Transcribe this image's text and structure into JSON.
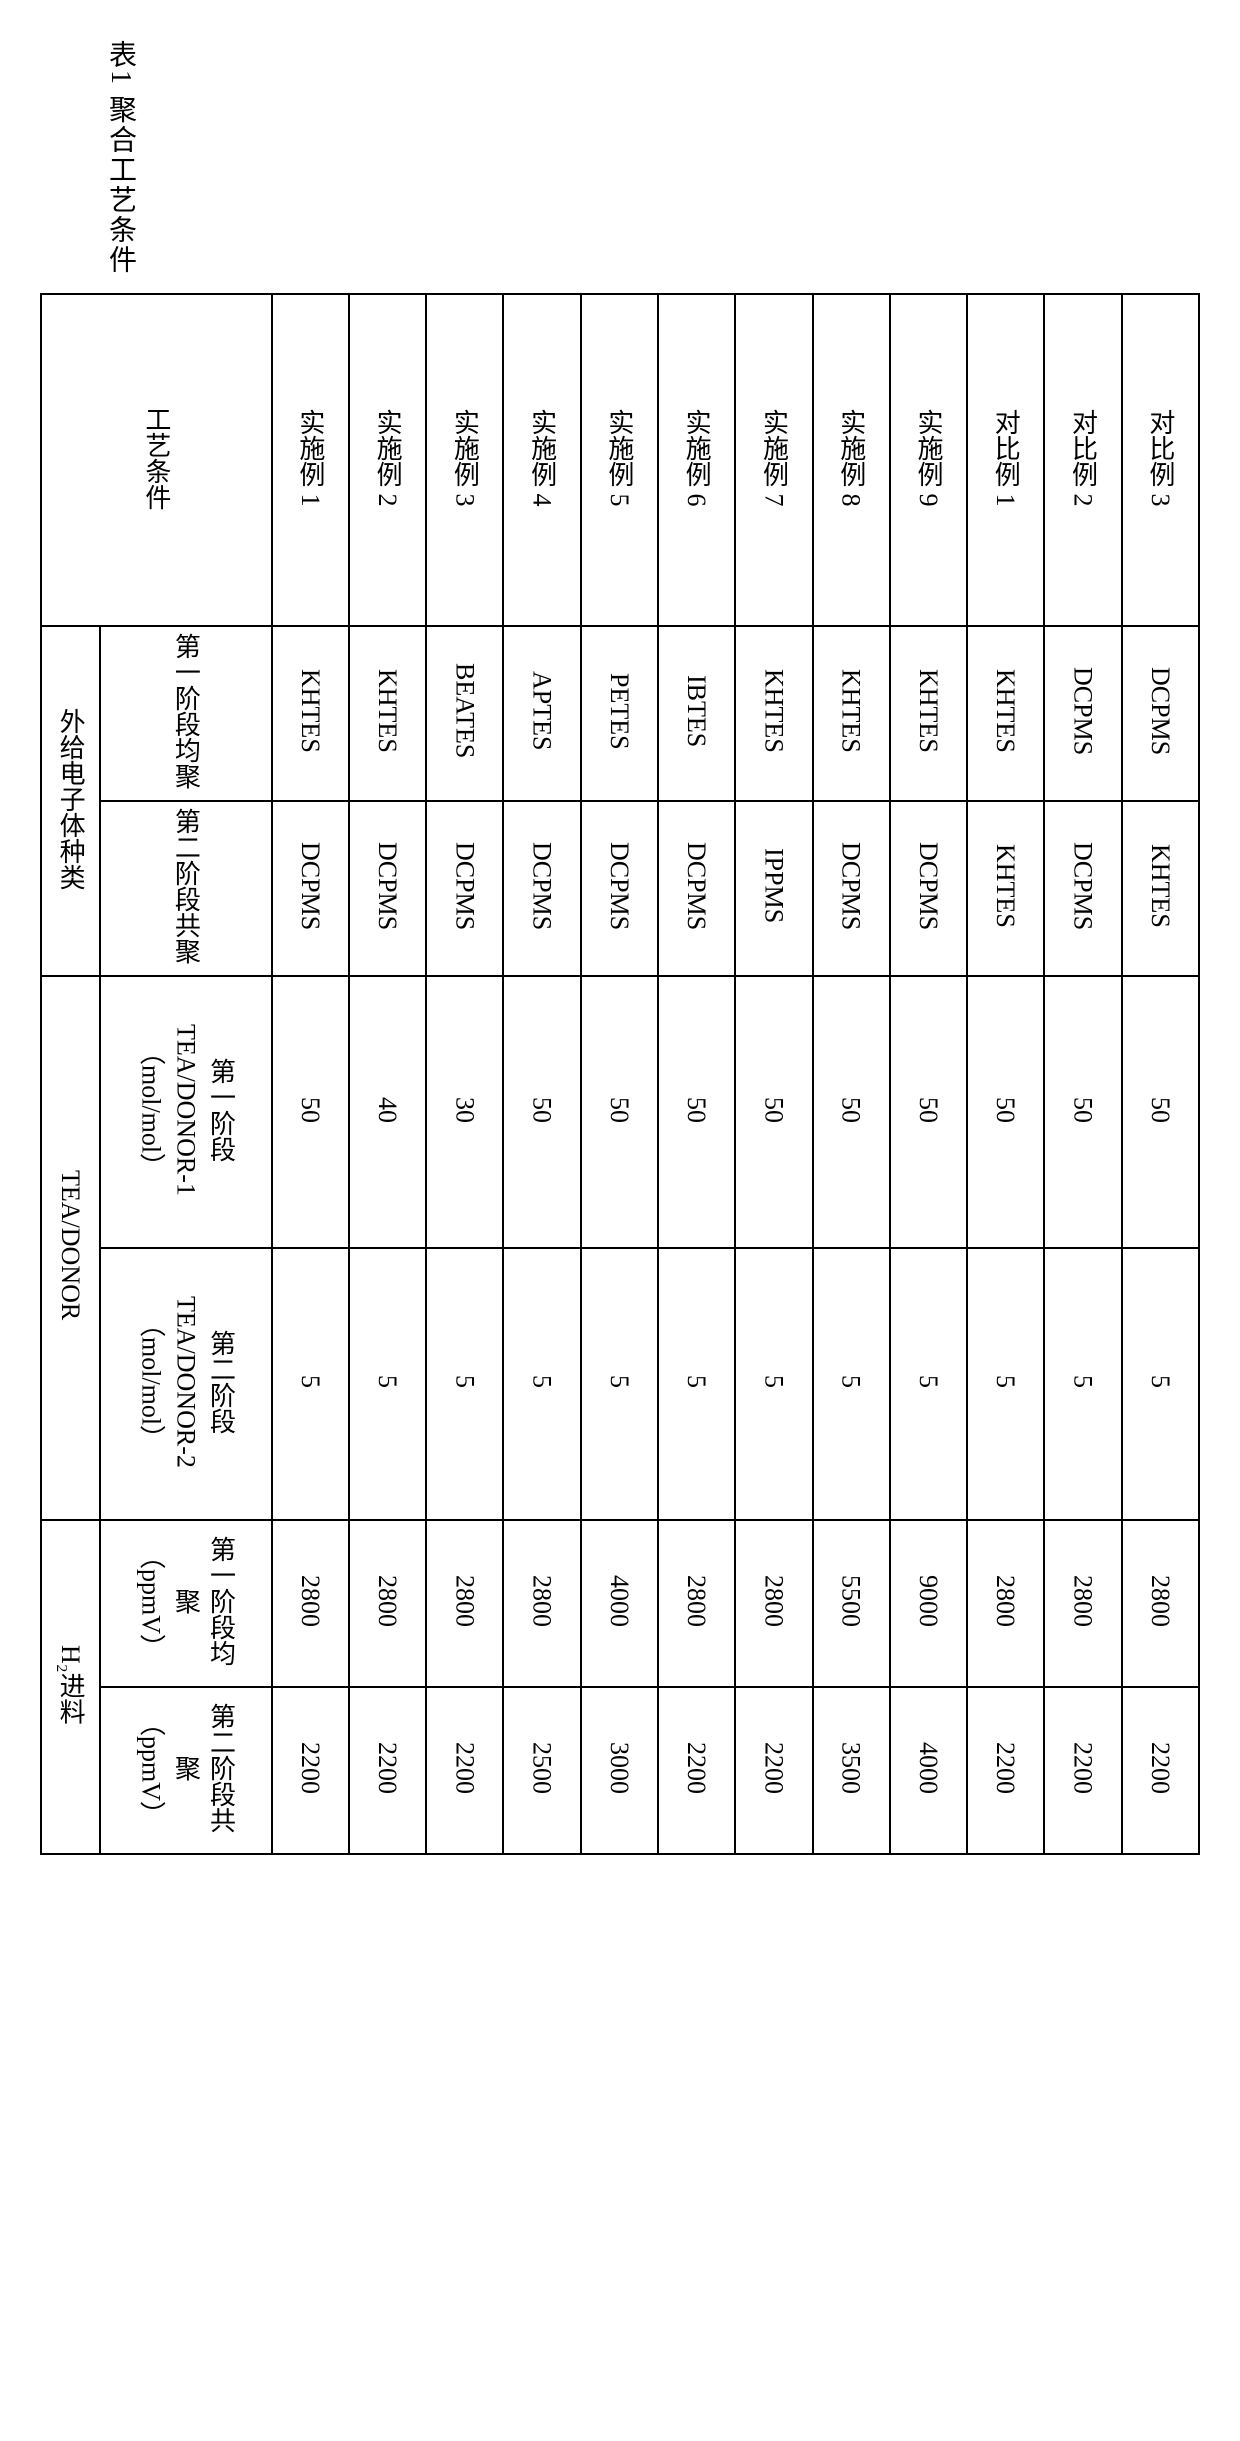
{
  "caption": "表1 聚合工艺条件",
  "corner_label": "工艺条件",
  "columns": [
    "实施例 1",
    "实施例 2",
    "实施例 3",
    "实施例 4",
    "实施例 5",
    "实施例 6",
    "实施例 7",
    "实施例 8",
    "实施例 9",
    "对比例 1",
    "对比例 2",
    "对比例 3"
  ],
  "groups": [
    {
      "label": "外给电子体种类",
      "rows": [
        {
          "sub": "第一阶段均聚",
          "cells": [
            "KHTES",
            "KHTES",
            "BEATES",
            "APTES",
            "PETES",
            "IBTES",
            "KHTES",
            "KHTES",
            "KHTES",
            "KHTES",
            "DCPMS",
            "DCPMS"
          ]
        },
        {
          "sub": "第二阶段共聚",
          "cells": [
            "DCPMS",
            "DCPMS",
            "DCPMS",
            "DCPMS",
            "DCPMS",
            "DCPMS",
            "IPPMS",
            "DCPMS",
            "DCPMS",
            "KHTES",
            "DCPMS",
            "KHTES"
          ]
        }
      ]
    },
    {
      "label": "TEA/DONOR",
      "rows": [
        {
          "sub": "第一阶段\nTEA/DONOR-1\n（mol/mol）",
          "cells": [
            "50",
            "40",
            "30",
            "50",
            "50",
            "50",
            "50",
            "50",
            "50",
            "50",
            "50",
            "50"
          ]
        },
        {
          "sub": "第二阶段\nTEA/DONOR-2\n（mol/mol）",
          "cells": [
            "5",
            "5",
            "5",
            "5",
            "5",
            "5",
            "5",
            "5",
            "5",
            "5",
            "5",
            "5"
          ]
        }
      ]
    },
    {
      "label": "H₂进料",
      "rows": [
        {
          "sub": "第一阶段均聚\n（ppmV）",
          "cells": [
            "2800",
            "2800",
            "2800",
            "2800",
            "4000",
            "2800",
            "2800",
            "5500",
            "9000",
            "2800",
            "2800",
            "2800"
          ]
        },
        {
          "sub": "第二阶段共聚\n（ppmV）",
          "cells": [
            "2200",
            "2200",
            "2200",
            "2500",
            "3000",
            "2200",
            "2200",
            "3500",
            "4000",
            "2200",
            "2200",
            "2200"
          ]
        }
      ]
    }
  ]
}
